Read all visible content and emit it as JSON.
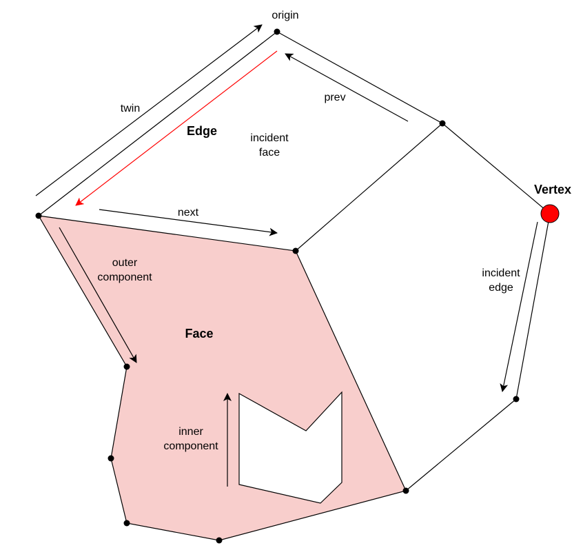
{
  "labels": {
    "origin": "origin",
    "twin": "twin",
    "edge": "Edge",
    "prev": "prev",
    "incident_face": [
      "incident",
      "face"
    ],
    "next": "next",
    "vertex": "Vertex",
    "incident_edge": [
      "incident",
      "edge"
    ],
    "outer_component": [
      "outer",
      "component"
    ],
    "face": "Face",
    "inner_component": [
      "inner",
      "component"
    ]
  },
  "colors": {
    "face_fill": "#f8cecc",
    "edge_highlight": "#ff0000",
    "vertex_highlight": "#ff0000",
    "stroke": "#000000"
  }
}
